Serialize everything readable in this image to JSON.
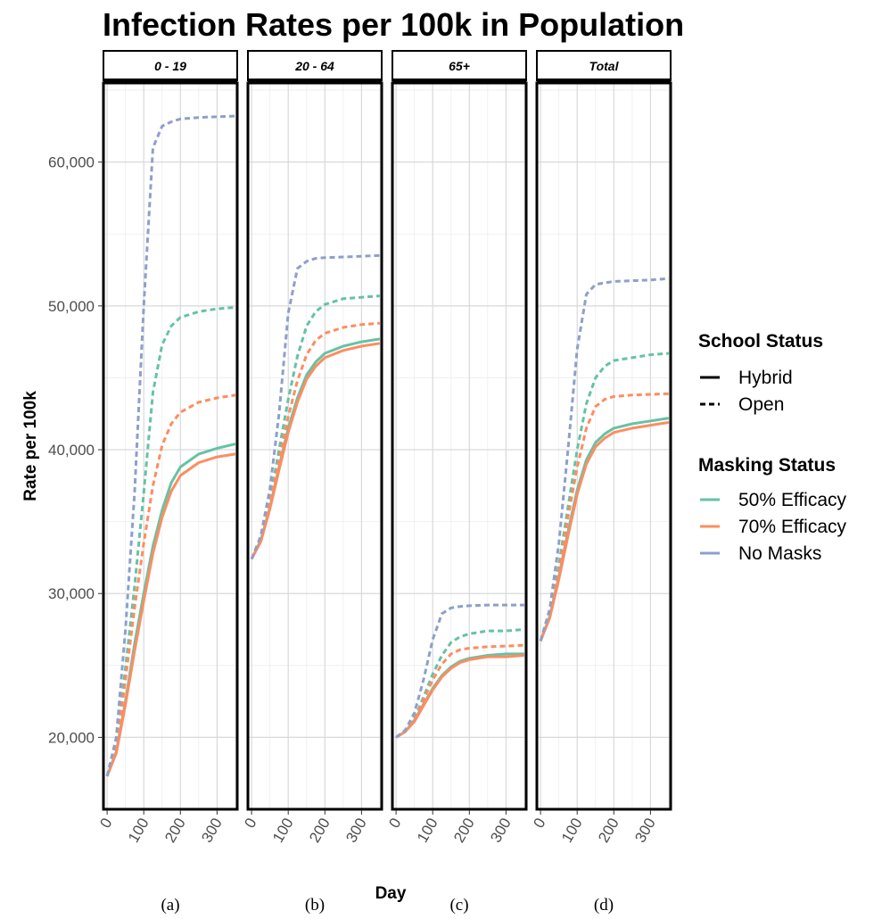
{
  "chart_data": {
    "type": "line",
    "title": "Infection Rates per 100k in Population",
    "xlabel": "Day",
    "ylabel": "Rate per 100k",
    "xlim": [
      -10,
      355
    ],
    "ylim": [
      15000,
      65500
    ],
    "x_ticks": [
      0,
      100,
      200,
      300
    ],
    "x_tick_labels": [
      "0",
      "100",
      "200",
      "300"
    ],
    "y_ticks": [
      20000,
      30000,
      40000,
      50000,
      60000
    ],
    "y_tick_labels": [
      "20,000",
      "30,000",
      "40,000",
      "50,000",
      "60,000"
    ],
    "grid": true,
    "legend_position": "right",
    "legends": [
      {
        "title": "School Status",
        "type": "linetype",
        "items": [
          {
            "label": "Hybrid",
            "dash": "solid"
          },
          {
            "label": "Open",
            "dash": "dashed"
          }
        ]
      },
      {
        "title": "Masking Status",
        "type": "color",
        "items": [
          {
            "label": "50% Efficacy",
            "color": "#66c2a5"
          },
          {
            "label": "70% Efficacy",
            "color": "#fc8d62"
          },
          {
            "label": "No Masks",
            "color": "#8da0cb"
          }
        ]
      }
    ],
    "colors": {
      "50% Efficacy": "#66c2a5",
      "70% Efficacy": "#fc8d62",
      "No Masks": "#8da0cb"
    },
    "panels": [
      {
        "strip": "0 - 19",
        "caption": "(a)",
        "x": [
          0,
          25,
          50,
          75,
          100,
          125,
          150,
          175,
          200,
          250,
          300,
          350
        ],
        "series": [
          {
            "masking": "50% Efficacy",
            "school": "Hybrid",
            "values": [
              17300,
              19000,
              22500,
              26500,
              30000,
              33300,
              35800,
              37700,
              38800,
              39700,
              40100,
              40400
            ]
          },
          {
            "masking": "70% Efficacy",
            "school": "Hybrid",
            "values": [
              17300,
              18900,
              22300,
              26000,
              29500,
              32800,
              35300,
              37100,
              38200,
              39100,
              39500,
              39700
            ]
          },
          {
            "masking": "50% Efficacy",
            "school": "Open",
            "values": [
              17300,
              19400,
              24800,
              30500,
              37000,
              44000,
              47300,
              48600,
              49200,
              49600,
              49800,
              49900
            ]
          },
          {
            "masking": "70% Efficacy",
            "school": "Open",
            "values": [
              17300,
              19200,
              24000,
              29000,
              33500,
              37500,
              40300,
              41800,
              42600,
              43300,
              43600,
              43800
            ]
          },
          {
            "masking": "No Masks",
            "school": "Open",
            "values": [
              17300,
              20000,
              27500,
              37000,
              50000,
              61000,
              62500,
              62800,
              63000,
              63100,
              63150,
              63200
            ]
          }
        ]
      },
      {
        "strip": "20 - 64",
        "caption": "(b)",
        "x": [
          0,
          25,
          50,
          75,
          100,
          125,
          150,
          175,
          200,
          250,
          300,
          350
        ],
        "series": [
          {
            "masking": "50% Efficacy",
            "school": "Hybrid",
            "values": [
              32400,
              33700,
              36000,
              38800,
              41500,
              43600,
              45200,
              46100,
              46700,
              47200,
              47500,
              47700
            ]
          },
          {
            "masking": "70% Efficacy",
            "school": "Hybrid",
            "values": [
              32400,
              33600,
              35900,
              38600,
              41200,
              43300,
              44900,
              45800,
              46400,
              46900,
              47200,
              47400
            ]
          },
          {
            "masking": "50% Efficacy",
            "school": "Open",
            "values": [
              32400,
              33800,
              36500,
              40000,
              43500,
              46500,
              48600,
              49600,
              50100,
              50500,
              50600,
              50700
            ]
          },
          {
            "masking": "70% Efficacy",
            "school": "Open",
            "values": [
              32400,
              33700,
              36200,
              39300,
              42300,
              44800,
              46600,
              47600,
              48100,
              48500,
              48700,
              48800
            ]
          },
          {
            "masking": "No Masks",
            "school": "Open",
            "values": [
              32400,
              34000,
              37300,
              42500,
              49500,
              52600,
              53100,
              53300,
              53350,
              53400,
              53450,
              53500
            ]
          }
        ]
      },
      {
        "strip": "65+",
        "caption": "(c)",
        "x": [
          0,
          25,
          50,
          75,
          100,
          125,
          150,
          175,
          200,
          250,
          300,
          350
        ],
        "series": [
          {
            "masking": "50% Efficacy",
            "school": "Hybrid",
            "values": [
              20000,
              20400,
              21200,
              22300,
              23400,
              24300,
              24900,
              25300,
              25500,
              25700,
              25800,
              25800
            ]
          },
          {
            "masking": "70% Efficacy",
            "school": "Hybrid",
            "values": [
              20000,
              20400,
              21100,
              22200,
              23300,
              24200,
              24800,
              25200,
              25400,
              25600,
              25600,
              25700
            ]
          },
          {
            "masking": "50% Efficacy",
            "school": "Open",
            "values": [
              20000,
              20400,
              21300,
              22800,
              24400,
              25700,
              26600,
              27000,
              27200,
              27400,
              27400,
              27500
            ]
          },
          {
            "masking": "70% Efficacy",
            "school": "Open",
            "values": [
              20000,
              20400,
              21200,
              22600,
              24000,
              25100,
              25800,
              26100,
              26200,
              26300,
              26350,
              26400
            ]
          },
          {
            "masking": "No Masks",
            "school": "Open",
            "values": [
              20000,
              20500,
              21700,
              24000,
              26800,
              28600,
              29000,
              29100,
              29150,
              29200,
              29200,
              29200
            ]
          }
        ]
      },
      {
        "strip": "Total",
        "caption": "(d)",
        "x": [
          0,
          25,
          50,
          75,
          100,
          125,
          150,
          175,
          200,
          250,
          300,
          350
        ],
        "series": [
          {
            "masking": "50% Efficacy",
            "school": "Hybrid",
            "values": [
              26700,
              28400,
              31200,
              34300,
              37200,
              39300,
              40500,
              41100,
              41500,
              41800,
              42000,
              42200
            ]
          },
          {
            "masking": "70% Efficacy",
            "school": "Hybrid",
            "values": [
              26700,
              28300,
              31000,
              34000,
              36900,
              39000,
              40200,
              40800,
              41200,
              41500,
              41700,
              41900
            ]
          },
          {
            "masking": "50% Efficacy",
            "school": "Open",
            "values": [
              26700,
              28600,
              32000,
              36000,
              40000,
              43200,
              45000,
              45800,
              46200,
              46400,
              46600,
              46700
            ]
          },
          {
            "masking": "70% Efficacy",
            "school": "Open",
            "values": [
              26700,
              28500,
              31500,
              35300,
              38800,
              41500,
              43000,
              43500,
              43700,
              43800,
              43850,
              43900
            ]
          },
          {
            "masking": "No Masks",
            "school": "Open",
            "values": [
              26700,
              28900,
              33500,
              40000,
              47000,
              50800,
              51500,
              51600,
              51700,
              51750,
              51800,
              51900
            ]
          }
        ]
      }
    ]
  }
}
